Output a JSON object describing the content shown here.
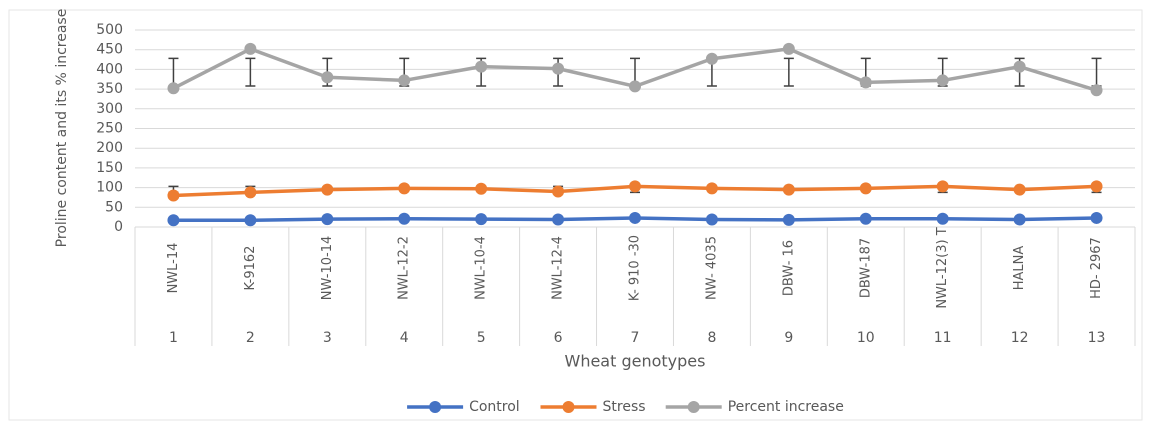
{
  "chart_data": {
    "type": "line",
    "y_label": "Proline content and its % increase",
    "x_label": "Wheat genotypes",
    "categories": [
      "NWL-14",
      "K-9162",
      "NW-10-14",
      "NWL-12-2",
      "NWL-10-4",
      "NWL-12-4",
      "K- 910 -30",
      "NW- 4035",
      "DBW- 16",
      "DBW-187",
      "NWL-12(3) T",
      "HALNA",
      "HD- 2967"
    ],
    "category_numbers": [
      1,
      2,
      3,
      4,
      5,
      6,
      7,
      8,
      9,
      10,
      11,
      12,
      13
    ],
    "series": [
      {
        "name": "Control",
        "color": "#4472c4",
        "values": [
          17,
          17,
          20,
          21,
          20,
          19,
          23,
          19,
          18,
          21,
          21,
          19,
          23
        ]
      },
      {
        "name": "Stress",
        "color": "#ed7d31",
        "values": [
          80,
          88,
          95,
          98,
          97,
          90,
          103,
          98,
          95,
          98,
          103,
          95,
          103
        ],
        "error_low": [
          88,
          88,
          null,
          null,
          null,
          88,
          88,
          null,
          null,
          null,
          88,
          null,
          88
        ],
        "error_high": [
          103,
          103,
          null,
          null,
          null,
          103,
          103,
          null,
          null,
          null,
          103,
          null,
          103
        ]
      },
      {
        "name": "Percent increase",
        "color": "#a5a5a5",
        "values": [
          352,
          452,
          380,
          372,
          407,
          402,
          357,
          427,
          452,
          367,
          372,
          407,
          347
        ],
        "error_low": [
          358,
          358,
          358,
          358,
          358,
          358,
          358,
          358,
          358,
          358,
          358,
          358,
          358
        ],
        "error_high": [
          428,
          428,
          428,
          428,
          428,
          428,
          428,
          428,
          428,
          428,
          428,
          428,
          428
        ]
      }
    ],
    "ylim": [
      0,
      500
    ],
    "yticks": [
      0,
      50,
      100,
      150,
      200,
      250,
      300,
      350,
      400,
      450,
      500
    ],
    "grid": true,
    "legend": "bottom"
  }
}
